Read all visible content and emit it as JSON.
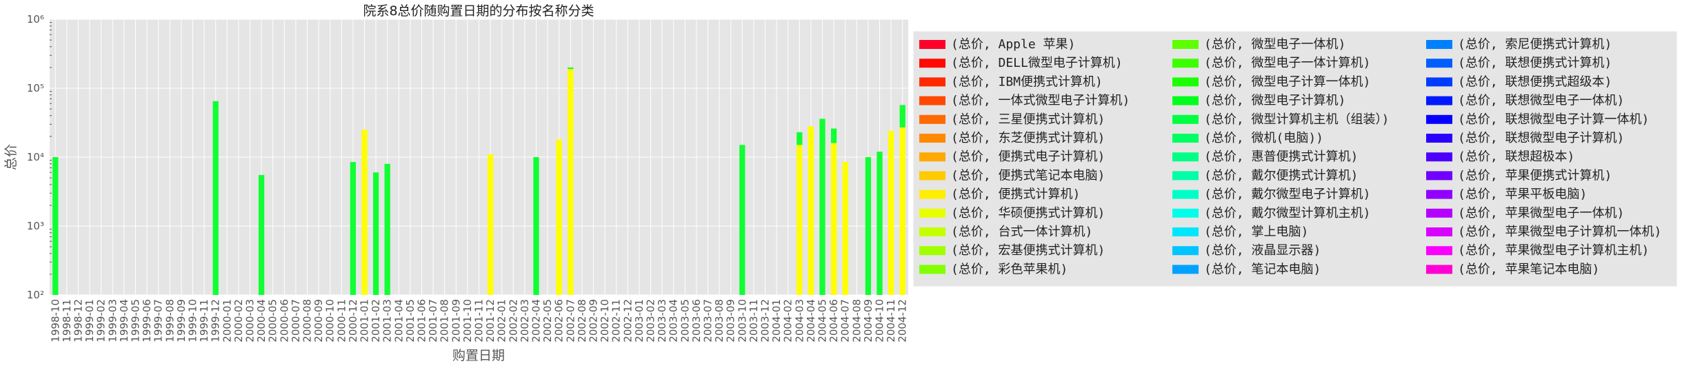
{
  "chart_data": {
    "type": "bar",
    "stacked": true,
    "title": "院系8总价随购置日期的分布按名称分类",
    "xlabel": "购置日期",
    "ylabel": "总价",
    "yscale": "log",
    "ylim": [
      100,
      1000000
    ],
    "y_tick_labels": [
      "10²",
      "10³",
      "10⁴",
      "10⁵",
      "10⁶"
    ],
    "grid": true,
    "legend_position": "right",
    "categories": [
      "1998-10",
      "1998-11",
      "1998-12",
      "1999-01",
      "1999-02",
      "1999-03",
      "1999-04",
      "1999-05",
      "1999-06",
      "1999-07",
      "1999-08",
      "1999-09",
      "1999-10",
      "1999-11",
      "1999-12",
      "2000-01",
      "2000-02",
      "2000-03",
      "2000-04",
      "2000-05",
      "2000-06",
      "2000-07",
      "2000-08",
      "2000-09",
      "2000-10",
      "2000-11",
      "2000-12",
      "2001-01",
      "2001-02",
      "2001-03",
      "2001-04",
      "2001-05",
      "2001-06",
      "2001-07",
      "2001-08",
      "2001-09",
      "2001-10",
      "2001-11",
      "2001-12",
      "2002-01",
      "2002-02",
      "2002-03",
      "2002-04",
      "2002-05",
      "2002-06",
      "2002-07",
      "2002-08",
      "2002-09",
      "2002-10",
      "2002-11",
      "2002-12",
      "2003-01",
      "2003-02",
      "2003-03",
      "2003-04",
      "2003-05",
      "2003-06",
      "2003-07",
      "2003-08",
      "2003-09",
      "2003-10",
      "2003-11",
      "2003-12",
      "2004-01",
      "2004-02",
      "2004-03",
      "2004-04",
      "2004-05",
      "2004-06",
      "2004-07",
      "2004-08",
      "2004-09",
      "2004-10",
      "2004-11",
      "2004-12"
    ],
    "series": [
      {
        "name": "(总价, 便携式计算机)",
        "color": "#ffff00",
        "values": {
          "2001-01": 25000,
          "2001-12": 11000,
          "2002-06": 18000,
          "2002-07": 190000,
          "2004-03": 15000,
          "2004-04": 28000,
          "2004-06": 16000,
          "2004-07": 8500,
          "2004-11": 24000,
          "2004-12": 27000
        }
      },
      {
        "name": "(总价, 微型电子计算机)",
        "color": "#11ff33",
        "values": {
          "1998-10": 10000,
          "1999-12": 65000,
          "2000-04": 5500,
          "2000-12": 8500,
          "2001-02": 6000,
          "2001-03": 8000,
          "2002-04": 10000,
          "2002-07": 10000,
          "2003-10": 15000,
          "2004-03": 8000,
          "2004-05": 36000,
          "2004-06": 10000,
          "2004-09": 10000,
          "2004-10": 12000,
          "2004-12": 30000
        }
      }
    ],
    "legend": [
      {
        "label": "(总价, Apple 苹果)",
        "color": "#ff0028"
      },
      {
        "label": "(总价, DELL微型电子计算机)",
        "color": "#ff0a00"
      },
      {
        "label": "(总价, IBM便携式计算机)",
        "color": "#ff2800"
      },
      {
        "label": "(总价, 一体式微型电子计算机)",
        "color": "#ff4800"
      },
      {
        "label": "(总价, 三星便携式计算机)",
        "color": "#ff6a00"
      },
      {
        "label": "(总价, 东芝便携式计算机)",
        "color": "#ff8a00"
      },
      {
        "label": "(总价, 便携式电子计算机)",
        "color": "#ffa800"
      },
      {
        "label": "(总价, 便携式笔记本电脑)",
        "color": "#ffca00"
      },
      {
        "label": "(总价, 便携式计算机)",
        "color": "#ffee00"
      },
      {
        "label": "(总价, 华硕便携式计算机)",
        "color": "#e8ff00"
      },
      {
        "label": "(总价, 台式一体计算机)",
        "color": "#c4ff00"
      },
      {
        "label": "(总价, 宏基便携式计算机)",
        "color": "#a2ff00"
      },
      {
        "label": "(总价, 彩色苹果机)",
        "color": "#82ff00"
      },
      {
        "label": "(总价, 微型电子一体机)",
        "color": "#5eff00"
      },
      {
        "label": "(总价, 微型电子一体计算机)",
        "color": "#3eff00"
      },
      {
        "label": "(总价, 微型电子计算一体机)",
        "color": "#1cff00"
      },
      {
        "label": "(总价, 微型电子计算机)",
        "color": "#00ff1c"
      },
      {
        "label": "(总价, 微型计算机主机（组装）)",
        "color": "#00ff40"
      },
      {
        "label": "(总价, 微机(电脑))",
        "color": "#00ff62"
      },
      {
        "label": "(总价, 惠普便携式计算机)",
        "color": "#00ff84"
      },
      {
        "label": "(总价, 戴尔便携式计算机)",
        "color": "#00ffa6"
      },
      {
        "label": "(总价, 戴尔微型电子计算机)",
        "color": "#00ffc8"
      },
      {
        "label": "(总价, 戴尔微型计算机主机)",
        "color": "#00ffea"
      },
      {
        "label": "(总价, 掌上电脑)",
        "color": "#00e6ff"
      },
      {
        "label": "(总价, 液晶显示器)",
        "color": "#00c4ff"
      },
      {
        "label": "(总价, 笔记本电脑)",
        "color": "#00a2ff"
      },
      {
        "label": "(总价, 索尼便携式计算机)",
        "color": "#0080ff"
      },
      {
        "label": "(总价, 联想便携式计算机)",
        "color": "#005eff"
      },
      {
        "label": "(总价, 联想便携式超级本)",
        "color": "#003cff"
      },
      {
        "label": "(总价, 联想微型电子一体机)",
        "color": "#001aff"
      },
      {
        "label": "(总价, 联想微型电子计算一体机)",
        "color": "#0800ff"
      },
      {
        "label": "(总价, 联想微型电子计算机)",
        "color": "#2a00ff"
      },
      {
        "label": "(总价, 联想超极本)",
        "color": "#4e00ff"
      },
      {
        "label": "(总价, 苹果便携式计算机)",
        "color": "#7000ff"
      },
      {
        "label": "(总价, 苹果平板电脑)",
        "color": "#9200ff"
      },
      {
        "label": "(总价, 苹果微型电子一体机)",
        "color": "#b400ff"
      },
      {
        "label": "(总价, 苹果微型电子计算机一体机)",
        "color": "#d800ff"
      },
      {
        "label": "(总价, 苹果微型电子计算机主机)",
        "color": "#fa00ff"
      },
      {
        "label": "(总价, 苹果笔记本电脑)",
        "color": "#ff00d4"
      }
    ]
  }
}
